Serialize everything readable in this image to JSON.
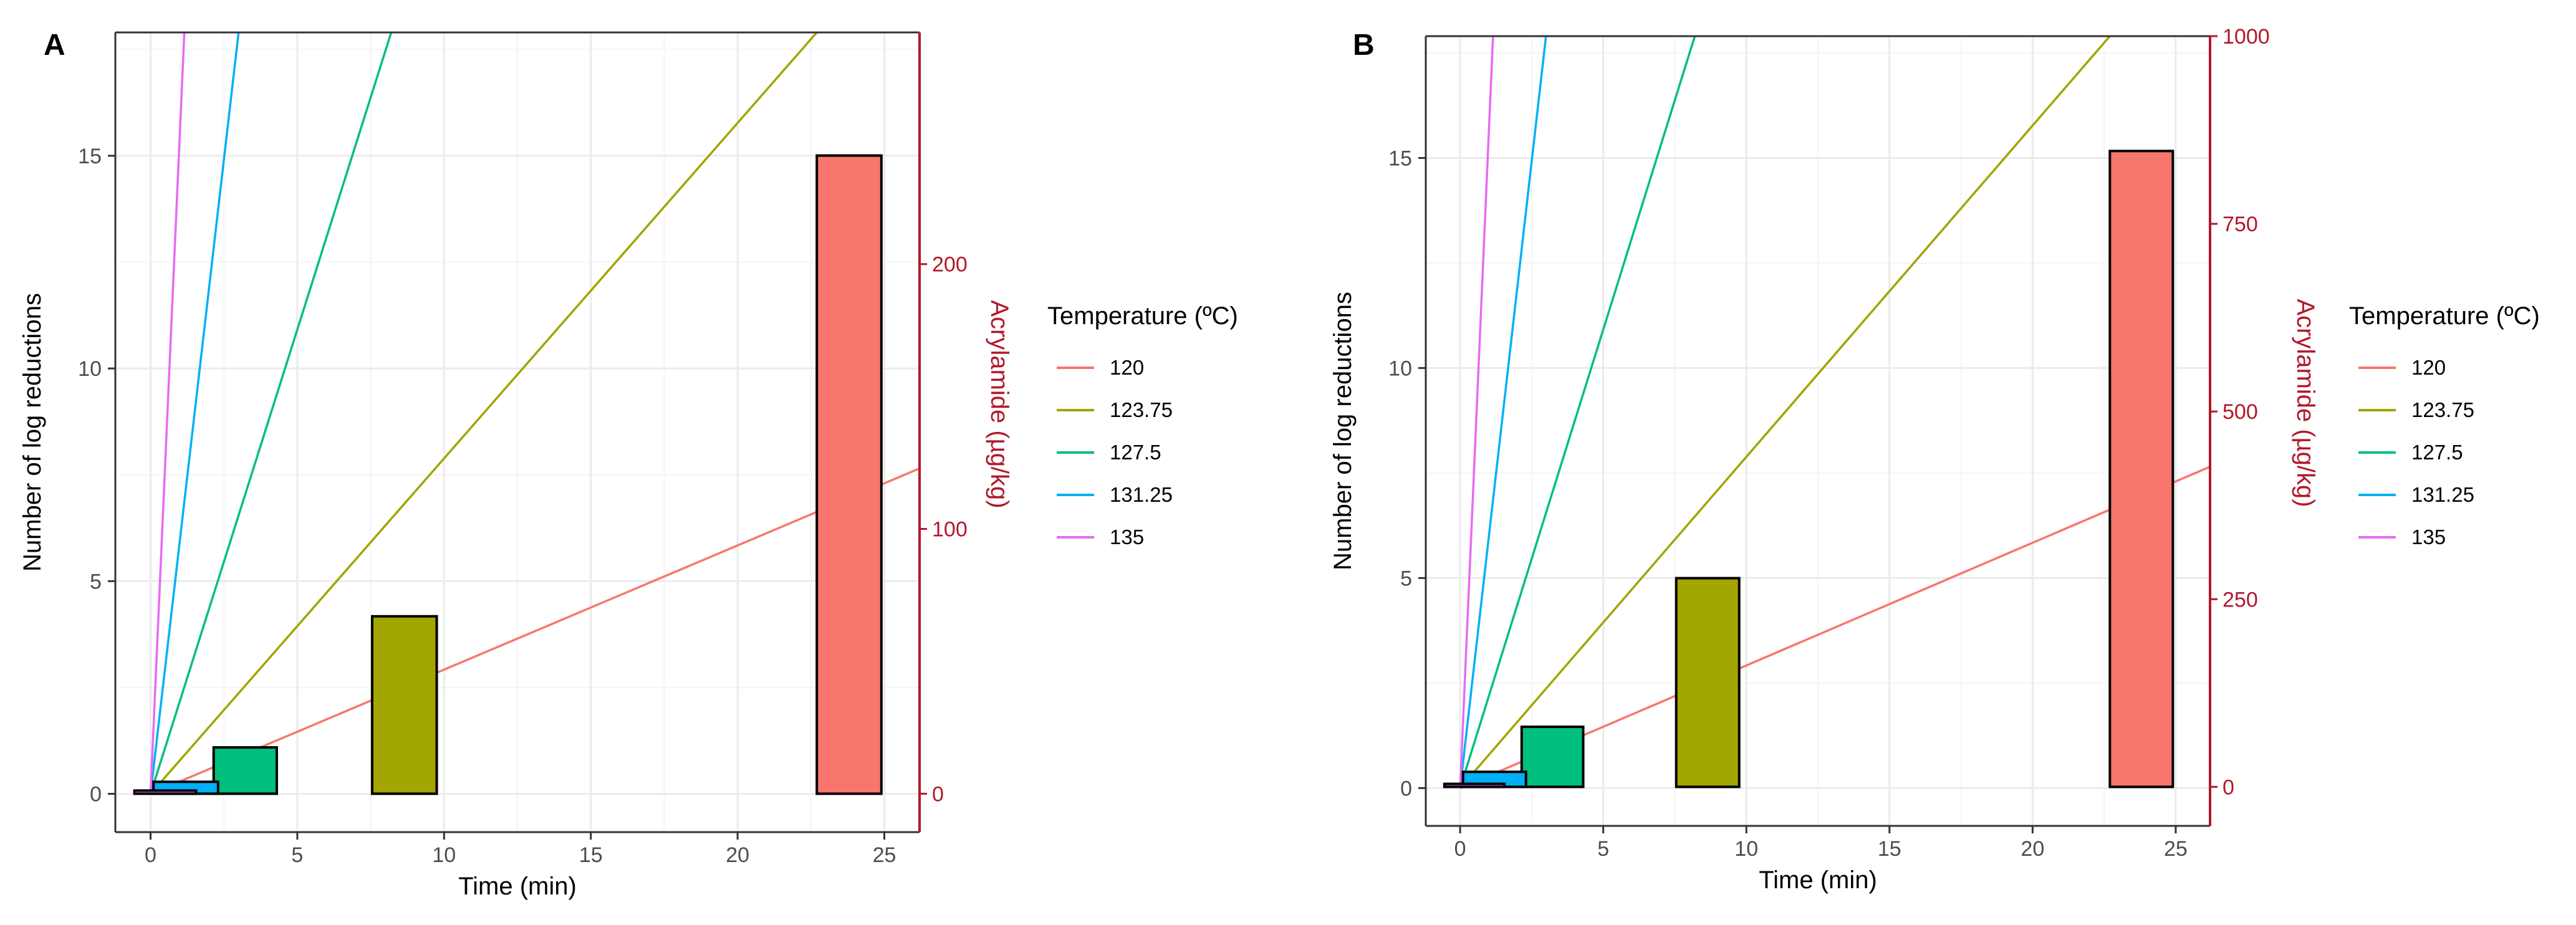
{
  "chart_data": [
    {
      "panel_label": "A",
      "type": "line",
      "xlabel": "Time (min)",
      "ylabel": "Number of log reductions",
      "ylabel_right": "Acrylamide (µg/kg)",
      "xlim": [
        -1.2,
        26.2
      ],
      "ylim": [
        -0.9,
        17.9
      ],
      "xticks": [
        0,
        5,
        10,
        15,
        20,
        25
      ],
      "yticks": [
        0,
        5,
        10,
        15
      ],
      "y2lim": [
        -14.5,
        287.5
      ],
      "y2ticks": [
        0,
        100,
        200
      ],
      "grid": true,
      "legend_title": "Temperature (ºC)",
      "series": [
        {
          "name": "120",
          "color": "#F8766D",
          "x": [
            0,
            26.2
          ],
          "y": [
            0,
            7.65
          ],
          "bar": {
            "x0": 22.7,
            "x1": 24.9,
            "value": 241
          }
        },
        {
          "name": "123.75",
          "color": "#A3A500",
          "x": [
            0,
            22.7
          ],
          "y": [
            0,
            17.9
          ],
          "bar": {
            "x0": 7.55,
            "x1": 9.75,
            "value": 67
          }
        },
        {
          "name": "127.5",
          "color": "#00BF7D",
          "x": [
            0,
            8.2
          ],
          "y": [
            0,
            17.9
          ],
          "bar": {
            "x0": 2.15,
            "x1": 4.3,
            "value": 17.5
          }
        },
        {
          "name": "131.25",
          "color": "#00B0F6",
          "x": [
            0,
            3.0
          ],
          "y": [
            0,
            17.9
          ],
          "bar": {
            "x0": 0.1,
            "x1": 2.3,
            "value": 4.5
          }
        },
        {
          "name": "135",
          "color": "#E76BF3",
          "x": [
            0,
            1.15
          ],
          "y": [
            0,
            17.9
          ],
          "bar": {
            "x0": -0.55,
            "x1": 1.55,
            "value": 1.2
          }
        }
      ]
    },
    {
      "panel_label": "B",
      "type": "line",
      "xlabel": "Time (min)",
      "ylabel": "Number of log reductions",
      "ylabel_right": "Acrylamide (µg/kg)",
      "xlim": [
        -1.2,
        26.2
      ],
      "ylim": [
        -0.9,
        17.9
      ],
      "xticks": [
        0,
        5,
        10,
        15,
        20,
        25
      ],
      "yticks": [
        0,
        5,
        10,
        15
      ],
      "y2lim": [
        -52,
        1000
      ],
      "y2ticks": [
        0,
        250,
        500,
        750,
        1000
      ],
      "grid": true,
      "legend_title": "Temperature (ºC)",
      "series": [
        {
          "name": "120",
          "color": "#F8766D",
          "x": [
            0,
            26.2
          ],
          "y": [
            0,
            7.65
          ],
          "bar": {
            "x0": 22.7,
            "x1": 24.9,
            "value": 847
          }
        },
        {
          "name": "123.75",
          "color": "#A3A500",
          "x": [
            0,
            22.7
          ],
          "y": [
            0,
            17.9
          ],
          "bar": {
            "x0": 7.55,
            "x1": 9.75,
            "value": 278
          }
        },
        {
          "name": "127.5",
          "color": "#00BF7D",
          "x": [
            0,
            8.2
          ],
          "y": [
            0,
            17.9
          ],
          "bar": {
            "x0": 2.15,
            "x1": 4.3,
            "value": 80
          }
        },
        {
          "name": "131.25",
          "color": "#00B0F6",
          "x": [
            0,
            3.0
          ],
          "y": [
            0,
            17.9
          ],
          "bar": {
            "x0": 0.1,
            "x1": 2.3,
            "value": 20
          }
        },
        {
          "name": "135",
          "color": "#E76BF3",
          "x": [
            0,
            1.15
          ],
          "y": [
            0,
            17.9
          ],
          "bar": {
            "x0": -0.55,
            "x1": 1.55,
            "value": 4
          }
        }
      ]
    }
  ]
}
